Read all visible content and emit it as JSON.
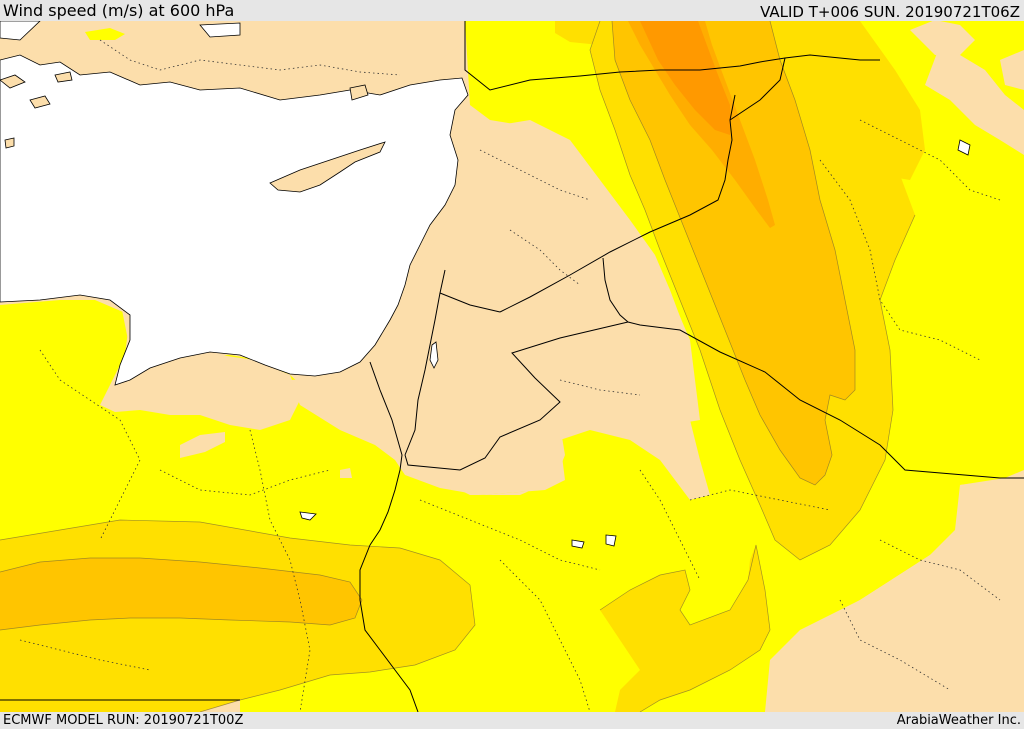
{
  "header": {
    "title": "Wind speed (m/s) at 600 hPa",
    "valid_time": "VALID T+006 SUN. 20190721T06Z"
  },
  "footer": {
    "model_run": "ECMWF MODEL RUN: 20190721T00Z",
    "credit": "ArabiaWeather Inc."
  },
  "colors": {
    "land": "#fcdeab",
    "sea": "#ffffff",
    "band_1": "#ffff00",
    "band_2": "#ffe000",
    "band_3": "#ffc500",
    "band_4": "#ffad00",
    "band_5": "#ff9900",
    "border": "#000000",
    "admin_boundary": "#333333"
  }
}
